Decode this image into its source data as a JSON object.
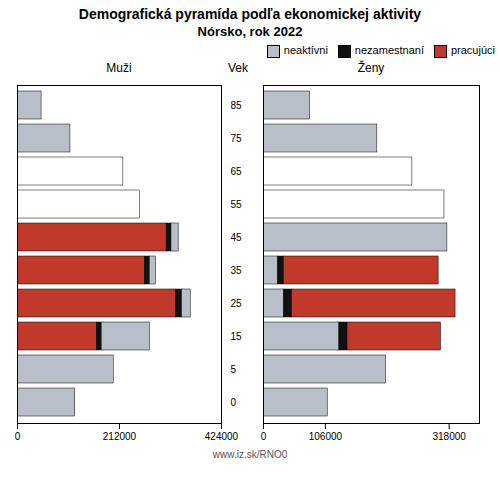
{
  "chart_data": {
    "type": "bar",
    "orientation": "horizontal",
    "stacked": true,
    "title": "Demografická pyramída podľa ekonomickej aktivity",
    "subtitle": "Nórsko, rok 2022",
    "ylabel": "Vek",
    "annotations": [
      "www.iz.sk/RNO0"
    ],
    "legend": "upper right",
    "categories": [
      85,
      75,
      65,
      55,
      45,
      35,
      25,
      15,
      5,
      0
    ],
    "panels": [
      {
        "title": "Muži",
        "xlim": [
          0,
          424000
        ],
        "xticks": [
          424000,
          212000,
          0
        ],
        "series": [
          {
            "name": "pracujúci",
            "color": "#c0392b",
            "values": [
              0,
              0,
              0,
              0,
              310000,
              265000,
              330000,
              165000,
              0,
              0
            ]
          },
          {
            "name": "nezamestnaní",
            "color": "#111111",
            "values": [
              0,
              0,
              0,
              0,
              10000,
              10000,
              12000,
              10000,
              0,
              0
            ]
          },
          {
            "name": "neaktívni",
            "color": "#b8bfc8",
            "values": [
              50000,
              110000,
              0,
              0,
              15000,
              13000,
              18000,
              100000,
              200000,
              120000
            ]
          },
          {
            "color": "#ffffff",
            "values": [
              0,
              0,
              220000,
              255000,
              0,
              0,
              0,
              0,
              0,
              0
            ]
          }
        ]
      },
      {
        "title": "Ženy",
        "xlim": [
          0,
          370000
        ],
        "xticks": [
          0,
          106000,
          318000
        ],
        "series": [
          {
            "name": "neaktívni",
            "color": "#b8bfc8",
            "values": [
              80000,
              195000,
              0,
              0,
              315000,
              25000,
              35000,
              130000,
              210000,
              110000
            ]
          },
          {
            "name": "nezamestnaní",
            "color": "#111111",
            "values": [
              0,
              0,
              0,
              0,
              0,
              10000,
              14000,
              14000,
              0,
              0
            ]
          },
          {
            "name": "pracujúci",
            "color": "#c0392b",
            "values": [
              0,
              0,
              0,
              0,
              0,
              265000,
              280000,
              160000,
              0,
              0
            ]
          },
          {
            "color": "#ffffff",
            "values": [
              0,
              0,
              255000,
              310000,
              0,
              0,
              0,
              0,
              0,
              0
            ]
          }
        ]
      }
    ]
  }
}
